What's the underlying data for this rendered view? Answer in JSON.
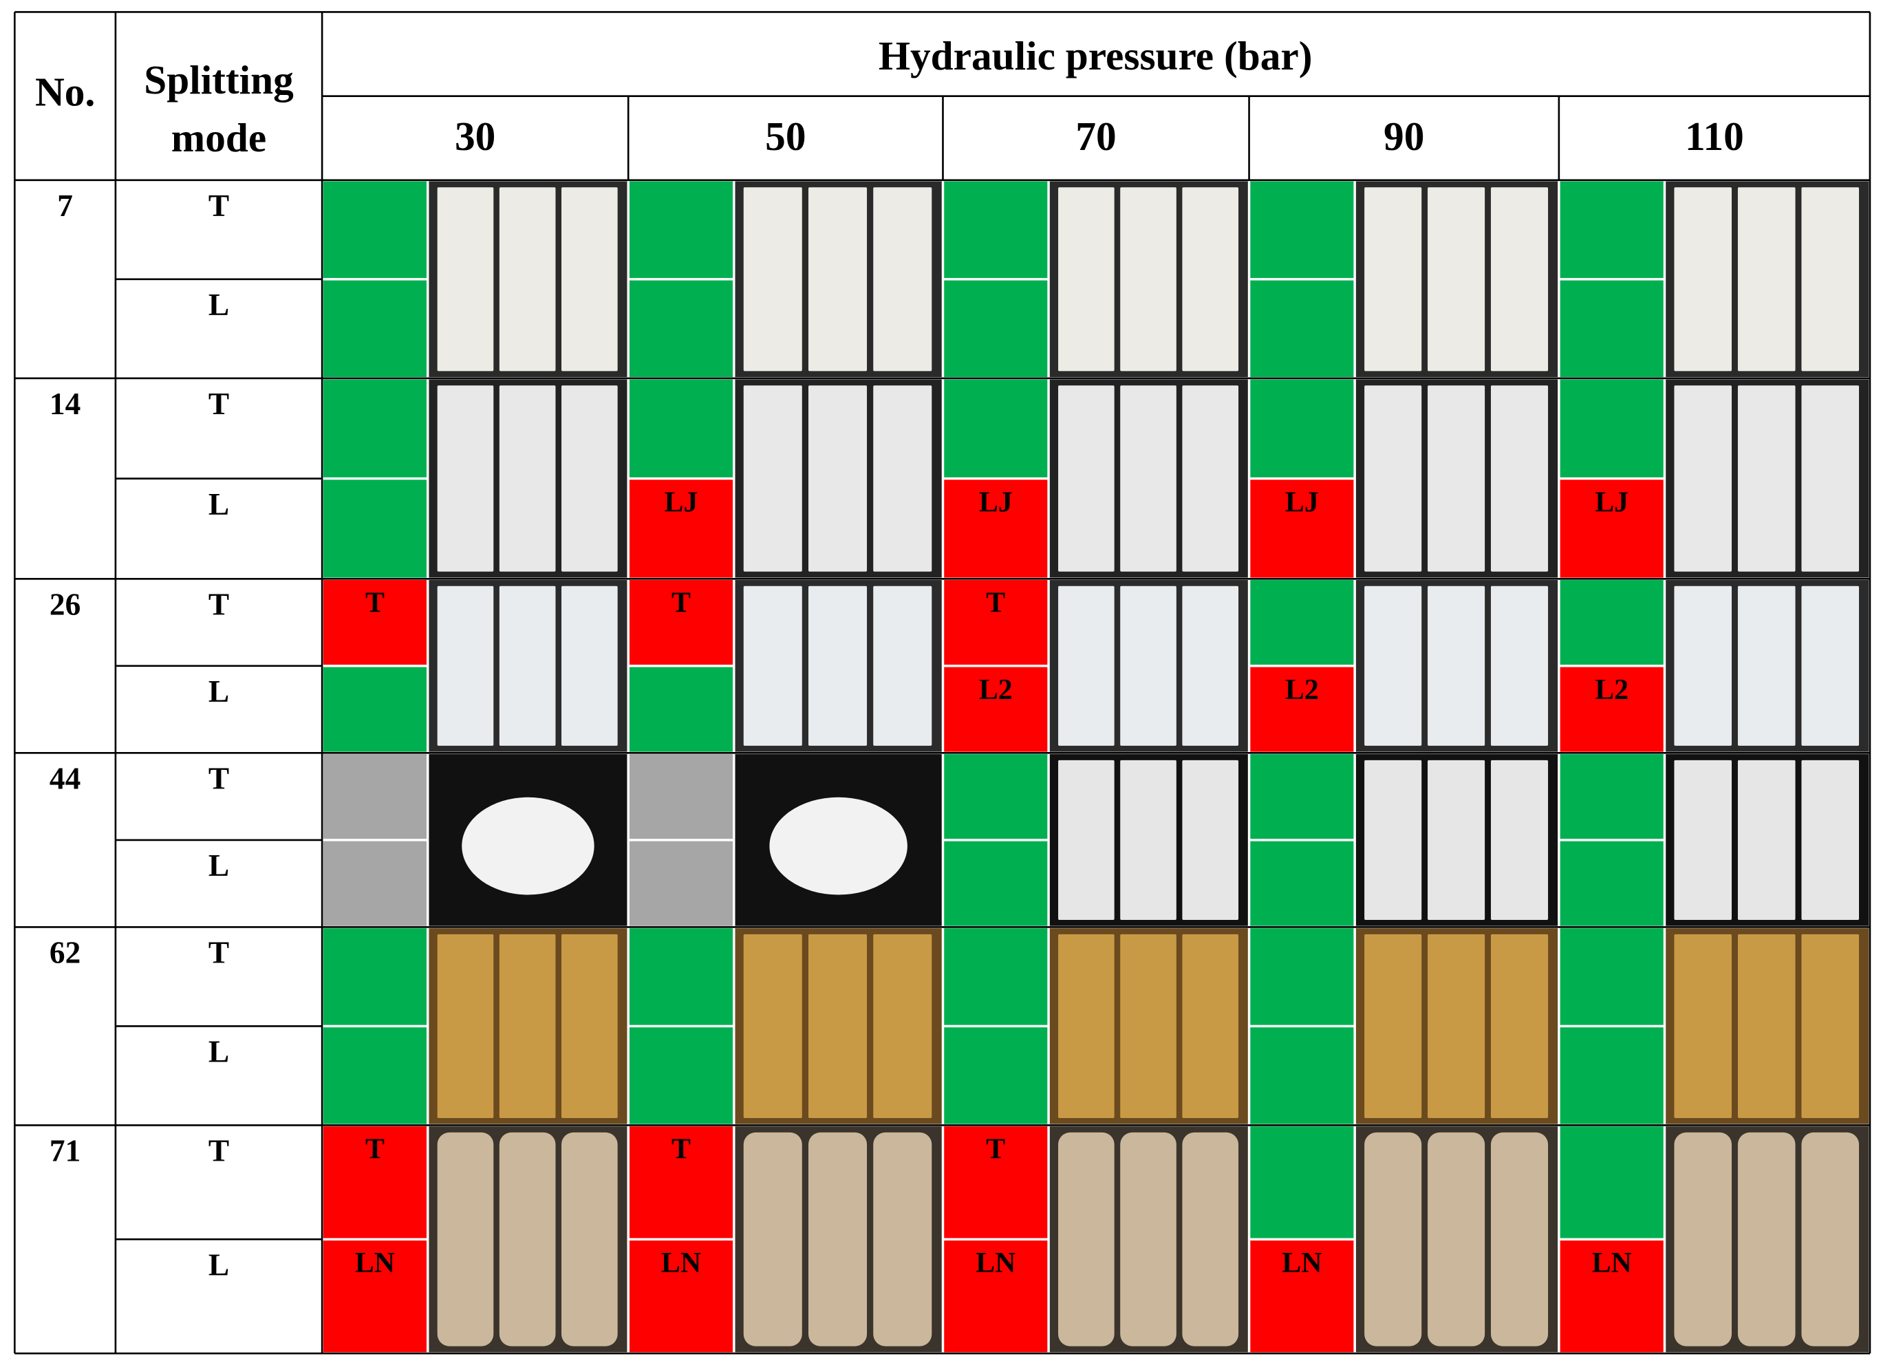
{
  "header": {
    "no": "No.",
    "mode": "Splitting mode",
    "group": "Hydraulic pressure (bar)",
    "pressures": [
      "30",
      "50",
      "70",
      "90",
      "110"
    ]
  },
  "rows": [
    {
      "no": "7",
      "modes": [
        "T",
        "L"
      ],
      "status": [
        [
          {
            "color": "#00b050"
          },
          {
            "color": "#00b050"
          }
        ],
        [
          {
            "color": "#00b050"
          },
          {
            "color": "#00b050"
          }
        ],
        [
          {
            "color": "#00b050"
          },
          {
            "color": "#00b050"
          }
        ],
        [
          {
            "color": "#00b050"
          },
          {
            "color": "#00b050"
          }
        ],
        [
          {
            "color": "#00b050"
          },
          {
            "color": "#00b050"
          }
        ]
      ]
    },
    {
      "no": "14",
      "modes": [
        "T",
        "L"
      ],
      "status": [
        [
          {
            "color": "#00b050"
          },
          {
            "color": "#00b050"
          }
        ],
        [
          {
            "color": "#00b050"
          },
          {
            "color": "#ff0000",
            "label": "LJ"
          }
        ],
        [
          {
            "color": "#00b050"
          },
          {
            "color": "#ff0000",
            "label": "LJ"
          }
        ],
        [
          {
            "color": "#00b050"
          },
          {
            "color": "#ff0000",
            "label": "LJ"
          }
        ],
        [
          {
            "color": "#00b050"
          },
          {
            "color": "#ff0000",
            "label": "LJ"
          }
        ]
      ]
    },
    {
      "no": "26",
      "modes": [
        "T",
        "L"
      ],
      "status": [
        [
          {
            "color": "#ff0000",
            "label": "T"
          },
          {
            "color": "#00b050"
          }
        ],
        [
          {
            "color": "#ff0000",
            "label": "T"
          },
          {
            "color": "#00b050"
          }
        ],
        [
          {
            "color": "#ff0000",
            "label": "T"
          },
          {
            "color": "#ff0000",
            "label": "L2"
          }
        ],
        [
          {
            "color": "#00b050"
          },
          {
            "color": "#ff0000",
            "label": "L2"
          }
        ],
        [
          {
            "color": "#00b050"
          },
          {
            "color": "#ff0000",
            "label": "L2"
          }
        ]
      ]
    },
    {
      "no": "44",
      "modes": [
        "T",
        "L"
      ],
      "status": [
        [
          {
            "color": "#a6a6a6"
          },
          {
            "color": "#a6a6a6"
          }
        ],
        [
          {
            "color": "#a6a6a6"
          },
          {
            "color": "#a6a6a6"
          }
        ],
        [
          {
            "color": "#00b050"
          },
          {
            "color": "#00b050"
          }
        ],
        [
          {
            "color": "#00b050"
          },
          {
            "color": "#00b050"
          }
        ],
        [
          {
            "color": "#00b050"
          },
          {
            "color": "#00b050"
          }
        ]
      ]
    },
    {
      "no": "62",
      "modes": [
        "T",
        "L"
      ],
      "status": [
        [
          {
            "color": "#00b050"
          },
          {
            "color": "#00b050"
          }
        ],
        [
          {
            "color": "#00b050"
          },
          {
            "color": "#00b050"
          }
        ],
        [
          {
            "color": "#00b050"
          },
          {
            "color": "#00b050"
          }
        ],
        [
          {
            "color": "#00b050"
          },
          {
            "color": "#00b050"
          }
        ],
        [
          {
            "color": "#00b050"
          },
          {
            "color": "#00b050"
          }
        ]
      ]
    },
    {
      "no": "71",
      "modes": [
        "T",
        "L"
      ],
      "status": [
        [
          {
            "color": "#ff0000",
            "label": "T"
          },
          {
            "color": "#ff0000",
            "label": "LN"
          }
        ],
        [
          {
            "color": "#ff0000",
            "label": "T"
          },
          {
            "color": "#ff0000",
            "label": "LN"
          }
        ],
        [
          {
            "color": "#ff0000",
            "label": "T"
          },
          {
            "color": "#ff0000",
            "label": "LN"
          }
        ],
        [
          {
            "color": "#00b050"
          },
          {
            "color": "#ff0000",
            "label": "LN"
          }
        ],
        [
          {
            "color": "#00b050"
          },
          {
            "color": "#ff0000",
            "label": "LN"
          }
        ]
      ]
    }
  ]
}
